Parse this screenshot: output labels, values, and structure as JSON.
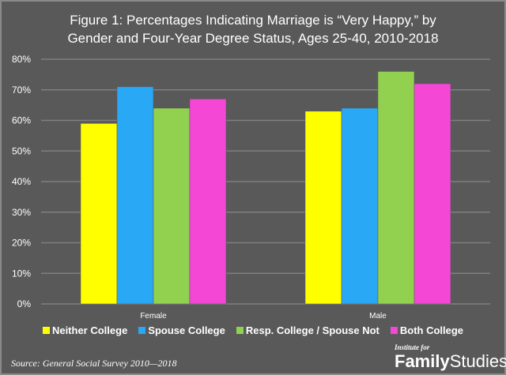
{
  "chart_data": {
    "type": "bar",
    "title_line1": "Figure 1: Percentages Indicating Marriage is “Very Happy,” by",
    "title_line2": "Gender and Four-Year Degree Status, Ages 25-40, 2010-2018",
    "categories": [
      "Female",
      "Male"
    ],
    "series": [
      {
        "name": "Neither College",
        "color": "#ffff00",
        "values": [
          59,
          63
        ]
      },
      {
        "name": "Spouse College",
        "color": "#29a8f5",
        "values": [
          71,
          64
        ]
      },
      {
        "name": "Resp. College / Spouse Not",
        "color": "#92d050",
        "values": [
          64,
          76
        ]
      },
      {
        "name": "Both College",
        "color": "#f447d6",
        "values": [
          67,
          72
        ]
      }
    ],
    "ylim": [
      0,
      80
    ],
    "yticks": [
      "0%",
      "10%",
      "20%",
      "30%",
      "40%",
      "50%",
      "60%",
      "70%",
      "80%"
    ],
    "ytick_values": [
      0,
      10,
      20,
      30,
      40,
      50,
      60,
      70,
      80
    ],
    "xlabel": "",
    "ylabel": "",
    "grid": true,
    "legend_position": "bottom"
  },
  "footer": {
    "source": "Source: General Social Survey 2010—2018",
    "logo_small": "Institute for",
    "logo_bold": "Family",
    "logo_regular": "Studies"
  }
}
